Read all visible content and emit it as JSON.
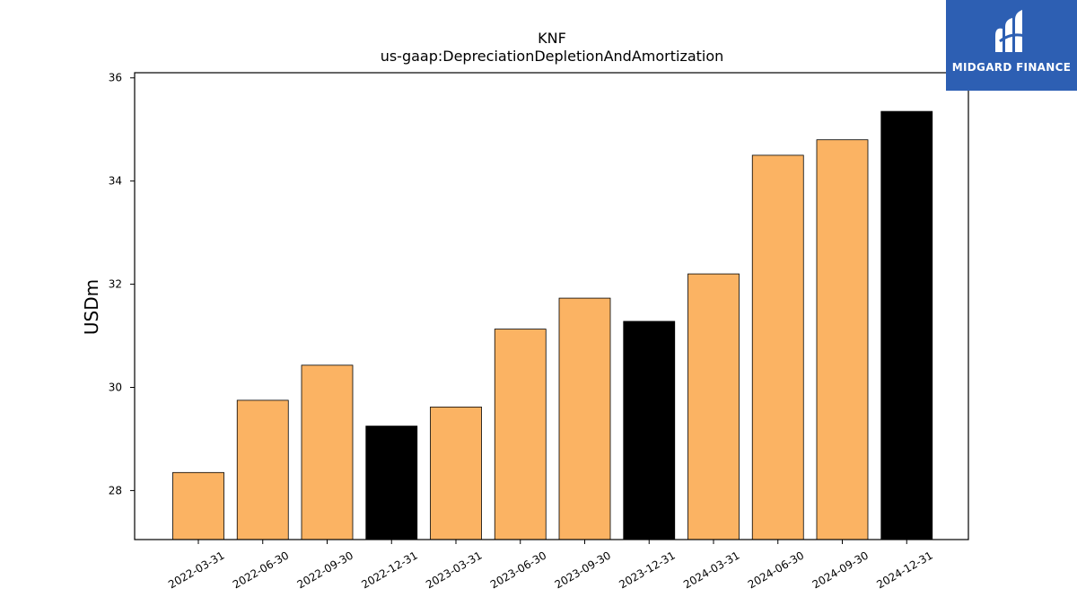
{
  "chart_data": {
    "type": "bar",
    "title": "KNF",
    "subtitle": "us-gaap:DepreciationDepletionAndAmortization",
    "ylabel": "USDm",
    "xlabel": "",
    "categories": [
      "2022-03-31",
      "2022-06-30",
      "2022-09-30",
      "2022-12-31",
      "2023-03-31",
      "2023-06-30",
      "2023-09-30",
      "2023-12-31",
      "2024-03-31",
      "2024-06-30",
      "2024-09-30",
      "2024-12-31"
    ],
    "values": [
      28.35,
      29.75,
      30.43,
      29.25,
      29.62,
      31.13,
      31.73,
      31.28,
      32.2,
      34.5,
      34.8,
      35.35
    ],
    "highlight": [
      false,
      false,
      false,
      true,
      false,
      false,
      false,
      true,
      false,
      false,
      false,
      true
    ],
    "ylim": [
      27.05,
      36.1
    ],
    "yticks": [
      28,
      30,
      32,
      34,
      36
    ],
    "grid": false,
    "colors": {
      "bar": "#fbb363",
      "highlight": "#000000",
      "edge": "#000000"
    }
  },
  "logo": {
    "text": "MIDGARD FINANCE",
    "bg": "#2d5fb3"
  }
}
